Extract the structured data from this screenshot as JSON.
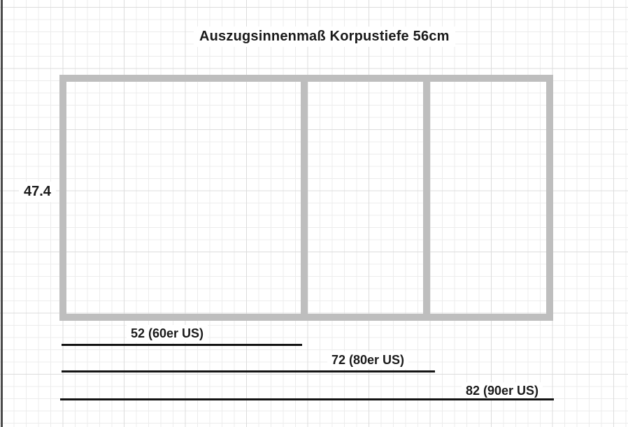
{
  "title": "Auszugsinnenmaß Korpustiefe 56cm",
  "cabinet": {
    "height_label": "47.4",
    "compartment_count": 3
  },
  "measurements": [
    {
      "label": "52 (60er US)",
      "value": 52,
      "variant": "60er US"
    },
    {
      "label": "72 (80er US)",
      "value": 72,
      "variant": "80er US"
    },
    {
      "label": "82 (90er US)",
      "value": 82,
      "variant": "90er US"
    }
  ],
  "colors": {
    "cabinet_outline": "#bebebe",
    "dimension_line": "#141414",
    "text": "#1a1a1a",
    "grid_minor": "#ececec",
    "grid_major": "#dcdcdc",
    "canvas_border": "#4b4b4b",
    "background": "#ffffff"
  }
}
